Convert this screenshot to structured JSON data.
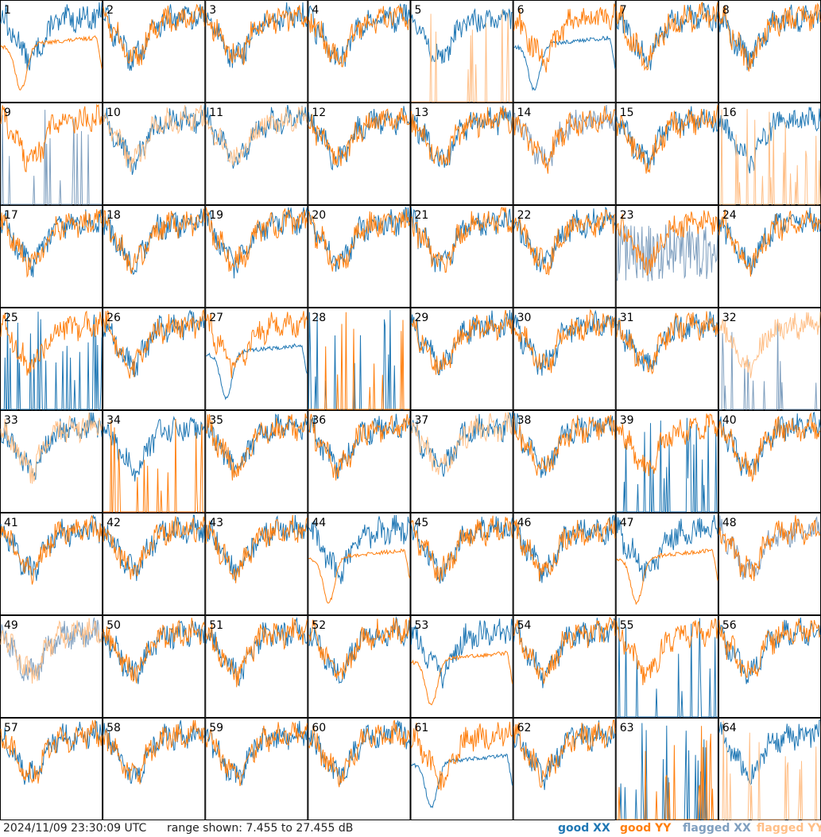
{
  "chart_data": {
    "type": "line",
    "timestamp": "2024/11/09 23:30:09 UTC",
    "range_text": "range shown: 7.455 to 27.455 dB",
    "ylim": [
      7.455,
      27.455
    ],
    "grid": "8x8",
    "colors": {
      "good_xx": "#1f77b4",
      "good_yy": "#ff7f0e",
      "flagged_xx": "#7f9fbf",
      "flagged_yy": "#ffbf87"
    },
    "legend": [
      {
        "label": "good XX",
        "key": "good_xx"
      },
      {
        "label": "good YY",
        "key": "good_yy"
      },
      {
        "label": "flagged XX",
        "key": "flagged_xx"
      },
      {
        "label": "flagged YY",
        "key": "flagged_yy"
      }
    ],
    "tiles": [
      {
        "label": "1",
        "xx": "good",
        "yy": "good",
        "xx_pattern": "normal",
        "yy_pattern": "smooth"
      },
      {
        "label": "2",
        "xx": "good",
        "yy": "good",
        "xx_pattern": "normal",
        "yy_pattern": "normal"
      },
      {
        "label": "3",
        "xx": "good",
        "yy": "good",
        "xx_pattern": "normal",
        "yy_pattern": "normal"
      },
      {
        "label": "4",
        "xx": "good",
        "yy": "good",
        "xx_pattern": "normal",
        "yy_pattern": "normal"
      },
      {
        "label": "5",
        "xx": "good",
        "yy": "flagged",
        "xx_pattern": "normal",
        "yy_pattern": "spikes"
      },
      {
        "label": "6",
        "xx": "good",
        "yy": "good",
        "xx_pattern": "smooth",
        "yy_pattern": "normal"
      },
      {
        "label": "7",
        "xx": "good",
        "yy": "good",
        "xx_pattern": "normal",
        "yy_pattern": "normal"
      },
      {
        "label": "8",
        "xx": "good",
        "yy": "good",
        "xx_pattern": "normal",
        "yy_pattern": "normal"
      },
      {
        "label": "9",
        "xx": "flagged",
        "yy": "good",
        "xx_pattern": "spikes",
        "yy_pattern": "normal"
      },
      {
        "label": "10",
        "xx": "good",
        "yy": "flagged",
        "xx_pattern": "normal",
        "yy_pattern": "normal"
      },
      {
        "label": "11",
        "xx": "good",
        "yy": "flagged",
        "xx_pattern": "normal",
        "yy_pattern": "normal"
      },
      {
        "label": "12",
        "xx": "good",
        "yy": "good",
        "xx_pattern": "normal",
        "yy_pattern": "normal"
      },
      {
        "label": "13",
        "xx": "good",
        "yy": "good",
        "xx_pattern": "normal",
        "yy_pattern": "normal"
      },
      {
        "label": "14",
        "xx": "flagged",
        "yy": "good",
        "xx_pattern": "normal",
        "yy_pattern": "normal"
      },
      {
        "label": "15",
        "xx": "good",
        "yy": "good",
        "xx_pattern": "normal",
        "yy_pattern": "normal"
      },
      {
        "label": "16",
        "xx": "good",
        "yy": "flagged",
        "xx_pattern": "normal",
        "yy_pattern": "spikes"
      },
      {
        "label": "17",
        "xx": "good",
        "yy": "good",
        "xx_pattern": "normal",
        "yy_pattern": "normal"
      },
      {
        "label": "18",
        "xx": "good",
        "yy": "good",
        "xx_pattern": "normal",
        "yy_pattern": "normal"
      },
      {
        "label": "19",
        "xx": "good",
        "yy": "good",
        "xx_pattern": "normal",
        "yy_pattern": "normal"
      },
      {
        "label": "20",
        "xx": "good",
        "yy": "good",
        "xx_pattern": "normal",
        "yy_pattern": "normal"
      },
      {
        "label": "21",
        "xx": "good",
        "yy": "good",
        "xx_pattern": "normal",
        "yy_pattern": "normal"
      },
      {
        "label": "22",
        "xx": "good",
        "yy": "good",
        "xx_pattern": "normal",
        "yy_pattern": "normal"
      },
      {
        "label": "23",
        "xx": "flagged",
        "yy": "good",
        "xx_pattern": "noisy",
        "yy_pattern": "normal"
      },
      {
        "label": "24",
        "xx": "good",
        "yy": "good",
        "xx_pattern": "normal",
        "yy_pattern": "normal"
      },
      {
        "label": "25",
        "xx": "good",
        "yy": "good",
        "xx_pattern": "spikes",
        "yy_pattern": "normal"
      },
      {
        "label": "26",
        "xx": "good",
        "yy": "good",
        "xx_pattern": "normal",
        "yy_pattern": "normal"
      },
      {
        "label": "27",
        "xx": "good",
        "yy": "good",
        "xx_pattern": "smooth",
        "yy_pattern": "normal"
      },
      {
        "label": "28",
        "xx": "good",
        "yy": "good",
        "xx_pattern": "spikes",
        "yy_pattern": "spikes"
      },
      {
        "label": "29",
        "xx": "good",
        "yy": "good",
        "xx_pattern": "normal",
        "yy_pattern": "normal"
      },
      {
        "label": "30",
        "xx": "good",
        "yy": "good",
        "xx_pattern": "normal",
        "yy_pattern": "normal"
      },
      {
        "label": "31",
        "xx": "good",
        "yy": "good",
        "xx_pattern": "normal",
        "yy_pattern": "normal"
      },
      {
        "label": "32",
        "xx": "flagged",
        "yy": "flagged",
        "xx_pattern": "spikes",
        "yy_pattern": "normal"
      },
      {
        "label": "33",
        "xx": "good",
        "yy": "flagged",
        "xx_pattern": "normal",
        "yy_pattern": "normal"
      },
      {
        "label": "34",
        "xx": "good",
        "yy": "good",
        "xx_pattern": "normal",
        "yy_pattern": "spikes"
      },
      {
        "label": "35",
        "xx": "good",
        "yy": "good",
        "xx_pattern": "normal",
        "yy_pattern": "normal"
      },
      {
        "label": "36",
        "xx": "good",
        "yy": "good",
        "xx_pattern": "normal",
        "yy_pattern": "normal"
      },
      {
        "label": "37",
        "xx": "good",
        "yy": "flagged",
        "xx_pattern": "normal",
        "yy_pattern": "normal"
      },
      {
        "label": "38",
        "xx": "good",
        "yy": "good",
        "xx_pattern": "normal",
        "yy_pattern": "normal"
      },
      {
        "label": "39",
        "xx": "good",
        "yy": "good",
        "xx_pattern": "spikes",
        "yy_pattern": "normal"
      },
      {
        "label": "40",
        "xx": "good",
        "yy": "good",
        "xx_pattern": "normal",
        "yy_pattern": "normal"
      },
      {
        "label": "41",
        "xx": "good",
        "yy": "good",
        "xx_pattern": "normal",
        "yy_pattern": "normal"
      },
      {
        "label": "42",
        "xx": "good",
        "yy": "good",
        "xx_pattern": "normal",
        "yy_pattern": "normal"
      },
      {
        "label": "43",
        "xx": "good",
        "yy": "good",
        "xx_pattern": "normal",
        "yy_pattern": "normal"
      },
      {
        "label": "44",
        "xx": "good",
        "yy": "good",
        "xx_pattern": "normal",
        "yy_pattern": "smooth"
      },
      {
        "label": "45",
        "xx": "good",
        "yy": "good",
        "xx_pattern": "normal",
        "yy_pattern": "normal"
      },
      {
        "label": "46",
        "xx": "good",
        "yy": "good",
        "xx_pattern": "normal",
        "yy_pattern": "normal"
      },
      {
        "label": "47",
        "xx": "good",
        "yy": "good",
        "xx_pattern": "normal",
        "yy_pattern": "smooth"
      },
      {
        "label": "48",
        "xx": "flagged",
        "yy": "good",
        "xx_pattern": "normal",
        "yy_pattern": "normal"
      },
      {
        "label": "49",
        "xx": "flagged",
        "yy": "flagged",
        "xx_pattern": "normal",
        "yy_pattern": "normal"
      },
      {
        "label": "50",
        "xx": "good",
        "yy": "good",
        "xx_pattern": "normal",
        "yy_pattern": "normal"
      },
      {
        "label": "51",
        "xx": "good",
        "yy": "good",
        "xx_pattern": "normal",
        "yy_pattern": "normal"
      },
      {
        "label": "52",
        "xx": "good",
        "yy": "good",
        "xx_pattern": "normal",
        "yy_pattern": "normal"
      },
      {
        "label": "53",
        "xx": "good",
        "yy": "good",
        "xx_pattern": "normal",
        "yy_pattern": "smooth"
      },
      {
        "label": "54",
        "xx": "good",
        "yy": "good",
        "xx_pattern": "normal",
        "yy_pattern": "normal"
      },
      {
        "label": "55",
        "xx": "good",
        "yy": "good",
        "xx_pattern": "spikes",
        "yy_pattern": "normal"
      },
      {
        "label": "56",
        "xx": "good",
        "yy": "good",
        "xx_pattern": "normal",
        "yy_pattern": "normal"
      },
      {
        "label": "57",
        "xx": "good",
        "yy": "good",
        "xx_pattern": "normal",
        "yy_pattern": "normal"
      },
      {
        "label": "58",
        "xx": "good",
        "yy": "good",
        "xx_pattern": "normal",
        "yy_pattern": "normal"
      },
      {
        "label": "59",
        "xx": "good",
        "yy": "good",
        "xx_pattern": "normal",
        "yy_pattern": "normal"
      },
      {
        "label": "60",
        "xx": "good",
        "yy": "good",
        "xx_pattern": "normal",
        "yy_pattern": "normal"
      },
      {
        "label": "61",
        "xx": "good",
        "yy": "good",
        "xx_pattern": "smooth",
        "yy_pattern": "normal"
      },
      {
        "label": "62",
        "xx": "good",
        "yy": "good",
        "xx_pattern": "normal",
        "yy_pattern": "normal"
      },
      {
        "label": "63",
        "xx": "good",
        "yy": "good",
        "xx_pattern": "spikes",
        "yy_pattern": "spikes"
      },
      {
        "label": "64",
        "xx": "good",
        "yy": "flagged",
        "xx_pattern": "normal",
        "yy_pattern": "spikes"
      }
    ]
  }
}
